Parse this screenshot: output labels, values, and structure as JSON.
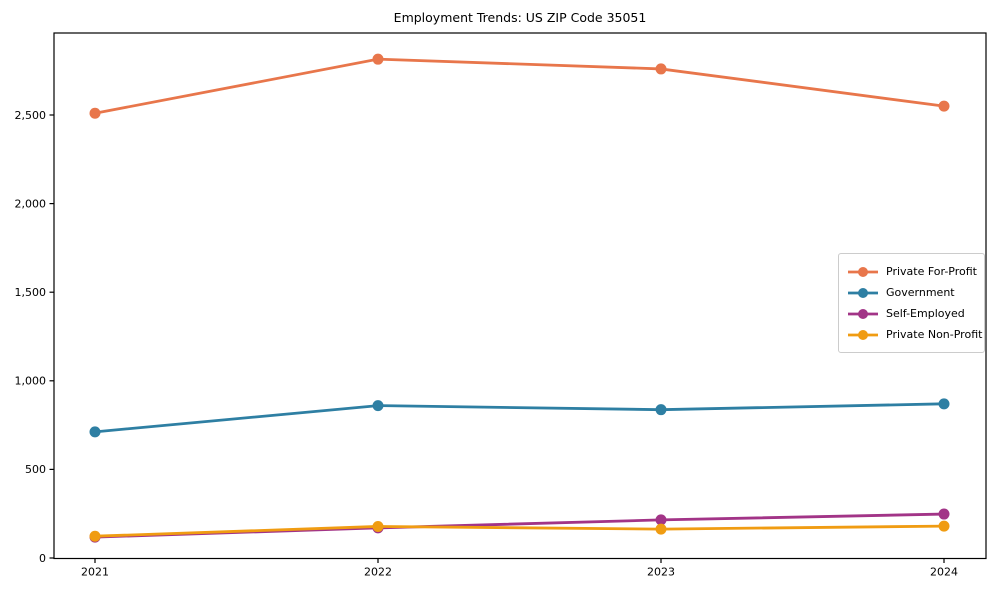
{
  "chart_data": {
    "type": "line",
    "title": "Employment Trends: US ZIP Code 35051",
    "categories": [
      "2021",
      "2022",
      "2023",
      "2024"
    ],
    "series": [
      {
        "name": "Private For-Profit",
        "color": "#e8764b",
        "values": [
          2510,
          2815,
          2760,
          2550
        ]
      },
      {
        "name": "Government",
        "color": "#2e7fa3",
        "values": [
          712,
          860,
          837,
          870
        ]
      },
      {
        "name": "Self-Employed",
        "color": "#a23487",
        "values": [
          118,
          170,
          215,
          248
        ]
      },
      {
        "name": "Private Non-Profit",
        "color": "#f09c12",
        "values": [
          123,
          178,
          163,
          180
        ]
      }
    ],
    "xlabel": "",
    "ylabel": "",
    "ylim": [
      0,
      2960
    ],
    "yticks": [
      0,
      500,
      1000,
      1500,
      2000,
      2500
    ],
    "ytick_labels": [
      "0",
      "500",
      "1,000",
      "1,500",
      "2,000",
      "2,500"
    ],
    "grid": false,
    "legend_position": "center-right",
    "axis_color": "#000000",
    "background_color": "#ffffff"
  }
}
